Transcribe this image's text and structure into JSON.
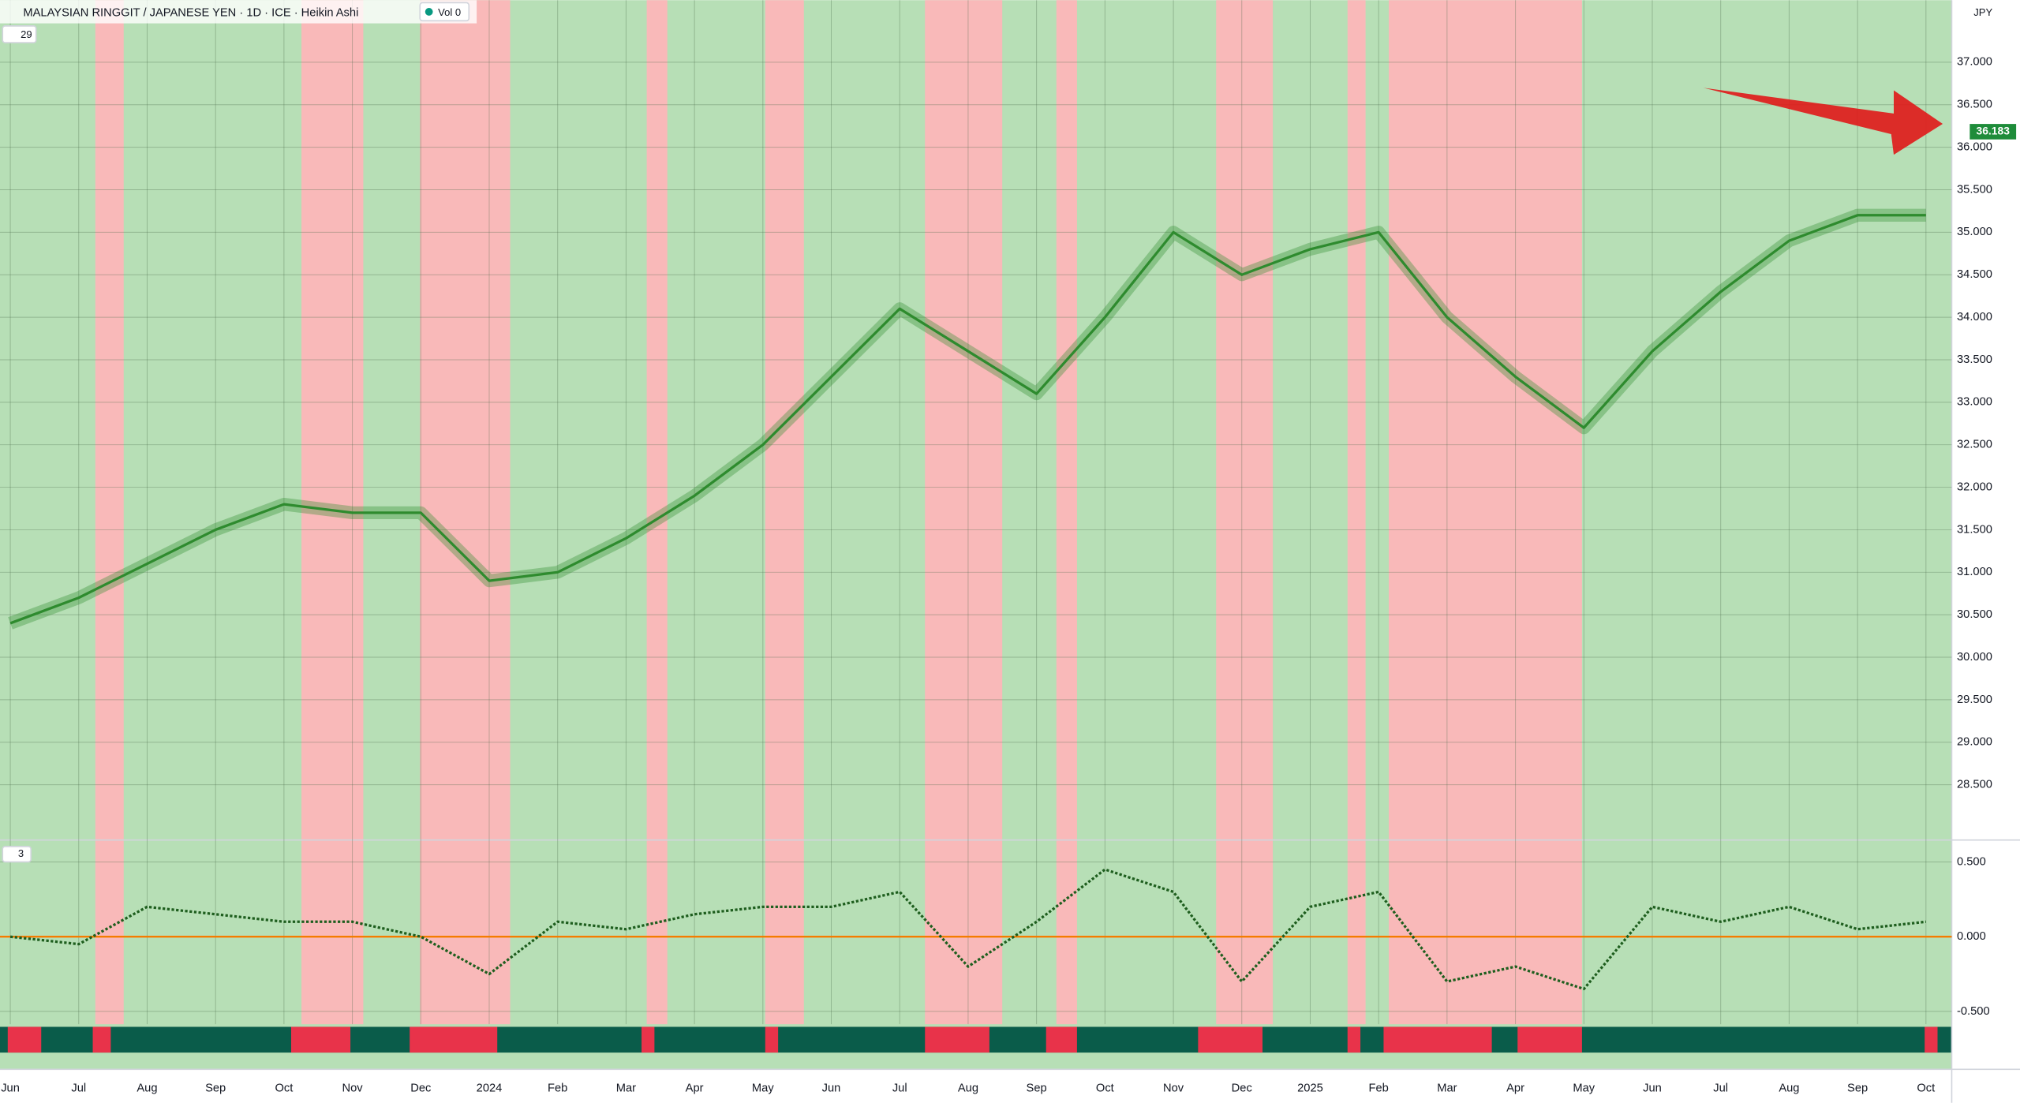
{
  "header": {
    "title": "MALAYSIAN RINGGIT / JAPANESE YEN · 1D · ICE · Heikin Ashi",
    "volume": "Vol 0",
    "indicators_count": "29",
    "pane_count": "3",
    "currency": "JPY"
  },
  "chart_data": [
    {
      "type": "line",
      "color": "#2e8b2e",
      "y_axis_side": "right",
      "grid": true,
      "categories": [
        "Jun",
        "Jul",
        "Aug",
        "Sep",
        "Oct",
        "Nov",
        "Dec",
        "2024",
        "Feb",
        "Mar",
        "Apr",
        "May",
        "Jun",
        "Jul",
        "Aug",
        "Sep",
        "Oct",
        "Nov",
        "Dec",
        "2025",
        "Feb",
        "Mar",
        "Apr",
        "May",
        "Jun",
        "Jul",
        "Aug",
        "Sep",
        "Oct"
      ],
      "values": [
        30.4,
        30.7,
        31.1,
        31.5,
        31.8,
        31.7,
        31.7,
        30.9,
        31.0,
        31.4,
        31.9,
        32.5,
        33.3,
        34.1,
        33.6,
        33.1,
        34.0,
        35.0,
        34.5,
        34.8,
        35.0,
        34.0,
        33.3,
        32.7,
        33.6,
        34.3,
        34.9,
        35.2,
        35.2
      ],
      "last_price": 36.183,
      "ylim": [
        27.88,
        37.73
      ],
      "yticks": [
        {
          "value": 28.5,
          "label": "28.500"
        },
        {
          "value": 29,
          "label": "29.000"
        },
        {
          "value": 29.5,
          "label": "29.500"
        },
        {
          "value": 30,
          "label": "30.000"
        },
        {
          "value": 30.5,
          "label": "30.500"
        },
        {
          "value": 31,
          "label": "31.000"
        },
        {
          "value": 31.5,
          "label": "31.500"
        },
        {
          "value": 32,
          "label": "32.000"
        },
        {
          "value": 32.5,
          "label": "32.500"
        },
        {
          "value": 33,
          "label": "33.000"
        },
        {
          "value": 33.5,
          "label": "33.500"
        },
        {
          "value": 34,
          "label": "34.000"
        },
        {
          "value": 34.5,
          "label": "34.500"
        },
        {
          "value": 35,
          "label": "35.000"
        },
        {
          "value": 35.5,
          "label": "35.500"
        },
        {
          "value": 36,
          "label": "36.000"
        },
        {
          "value": 36.5,
          "label": "36.500"
        },
        {
          "value": 37,
          "label": "37.000"
        }
      ]
    },
    {
      "type": "line",
      "color": "#1e5e1e",
      "grid": true,
      "values": [
        0.0,
        -0.05,
        0.2,
        0.15,
        0.1,
        0.1,
        0.0,
        -0.25,
        0.1,
        0.05,
        0.15,
        0.2,
        0.2,
        0.3,
        -0.2,
        0.1,
        0.45,
        0.3,
        -0.3,
        0.2,
        0.3,
        -0.3,
        -0.2,
        -0.35,
        0.2,
        0.1,
        0.2,
        0.05,
        0.1
      ],
      "ylim": [
        -0.586,
        0.621
      ],
      "yticks": [
        {
          "value": -0.5,
          "label": "-0.500"
        },
        {
          "value": 0,
          "label": "0.000"
        },
        {
          "value": 0.5,
          "label": "0.500"
        }
      ]
    }
  ]
}
